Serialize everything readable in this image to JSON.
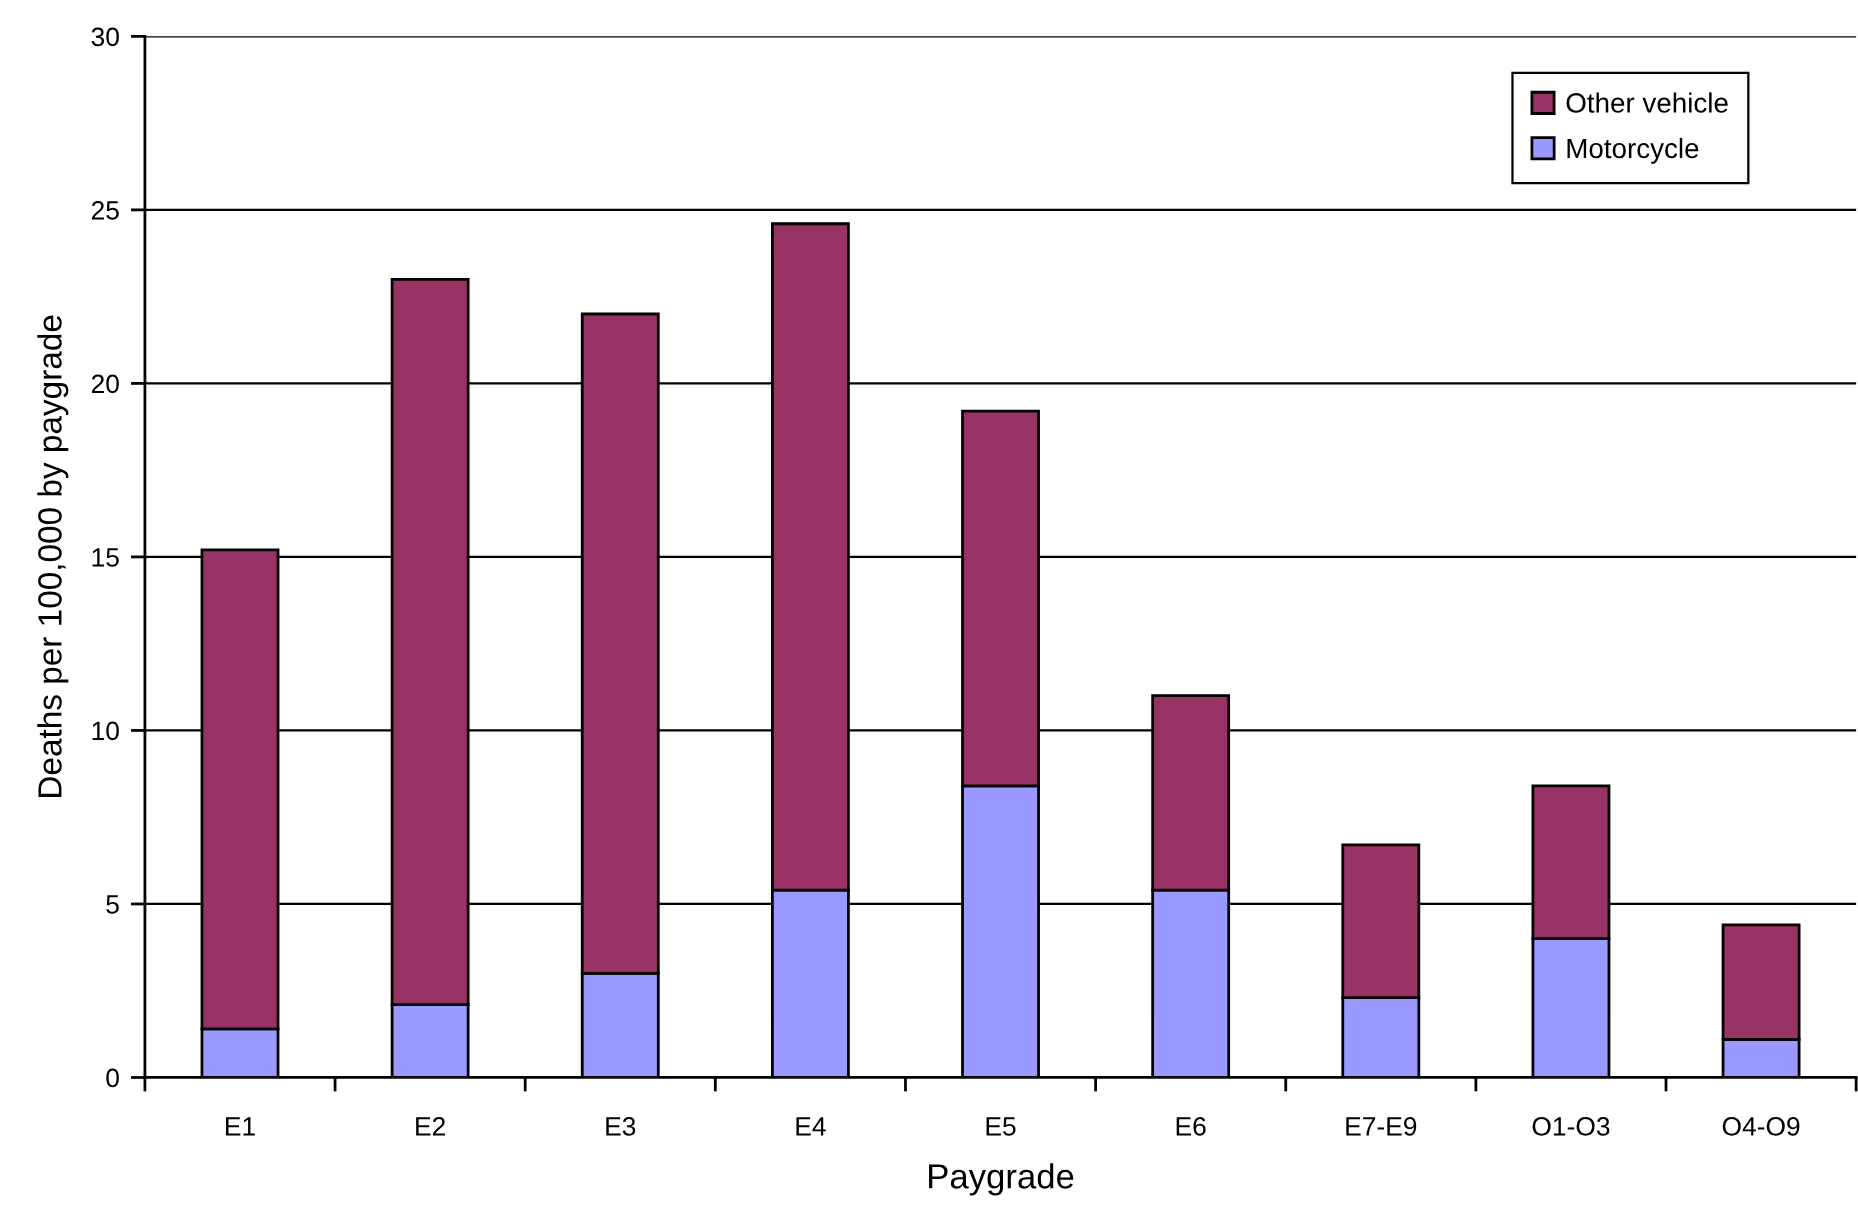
{
  "chart_data": {
    "type": "bar",
    "stacked": true,
    "xlabel": "Paygrade",
    "ylabel": "Deaths per 100,000 by paygrade",
    "categories": [
      "E1",
      "E2",
      "E3",
      "E4",
      "E5",
      "E6",
      "E7-E9",
      "O1-O3",
      "O4-O9"
    ],
    "series": [
      {
        "name": "Motorcycle",
        "color": "#9999ff",
        "values": [
          1.4,
          2.1,
          3.0,
          5.4,
          8.4,
          5.4,
          2.3,
          4.0,
          1.1
        ]
      },
      {
        "name": "Other vehicle",
        "color": "#993366",
        "values": [
          13.8,
          20.9,
          19.0,
          19.2,
          10.8,
          5.6,
          4.4,
          4.4,
          3.3
        ]
      }
    ],
    "ylim": [
      0,
      30
    ],
    "yticks": [
      0,
      5,
      10,
      15,
      20,
      25,
      30
    ],
    "grid": "y",
    "legend": "top right"
  }
}
